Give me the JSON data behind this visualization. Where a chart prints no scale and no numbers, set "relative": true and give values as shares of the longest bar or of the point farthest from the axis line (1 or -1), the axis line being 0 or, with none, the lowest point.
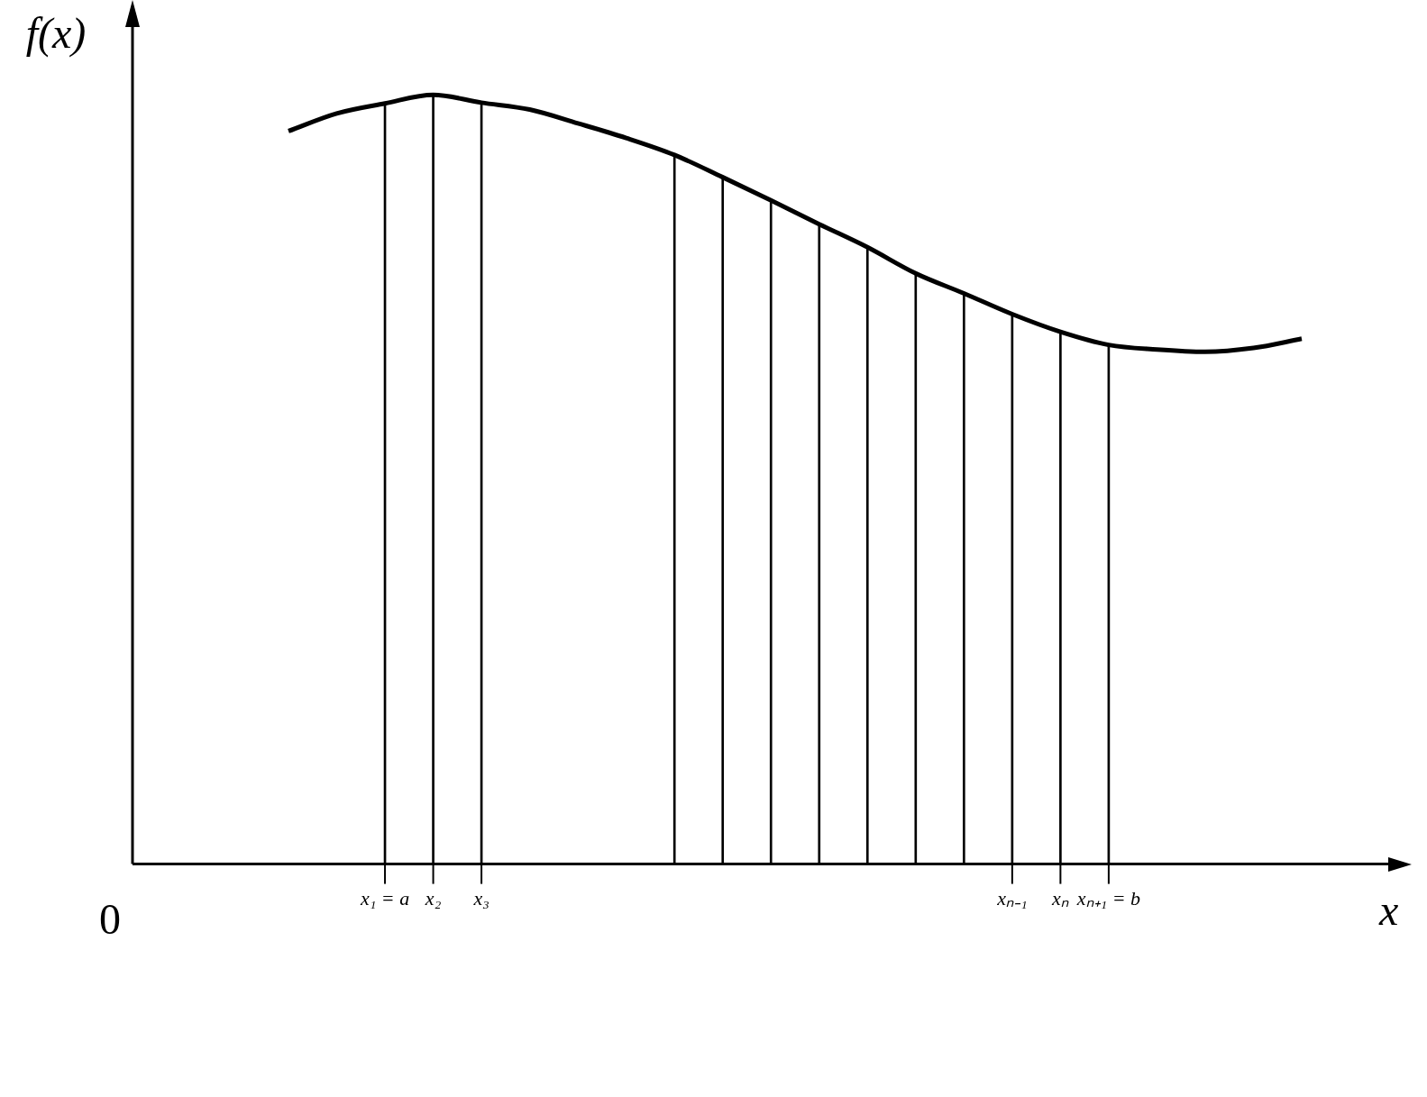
{
  "chart_data": {
    "type": "line",
    "relative": true,
    "xlabel": "x",
    "ylabel": "f(x)",
    "annotations": [
      "0"
    ],
    "categories": [
      null,
      null,
      "x₁ = a",
      "x₂",
      "x₃",
      null,
      null,
      null,
      null,
      null,
      null,
      null,
      null,
      null,
      null,
      "xₙ₋₁",
      "xₙ",
      "xₙ₊₁ = b",
      null,
      null,
      null,
      null
    ],
    "grid": false,
    "legend": false,
    "series": [
      {
        "color": "#000000",
        "values": [
          0.953,
          0.976,
          0.989,
          1,
          0.99,
          0.981,
          0.963,
          0.944,
          0.922,
          0.893,
          0.863,
          0.832,
          0.802,
          0.768,
          0.742,
          0.715,
          0.692,
          0.675,
          0.669,
          0.666,
          0.671,
          0.683
        ]
      },
      {
        "type": "bar",
        "color": "#000000",
        "values": [
          null,
          null,
          0.989,
          1,
          0.99,
          null,
          null,
          null,
          0.922,
          0.893,
          0.863,
          0.832,
          0.802,
          0.768,
          0.742,
          0.715,
          0.692,
          0.675,
          null,
          null,
          null,
          null
        ]
      }
    ]
  }
}
